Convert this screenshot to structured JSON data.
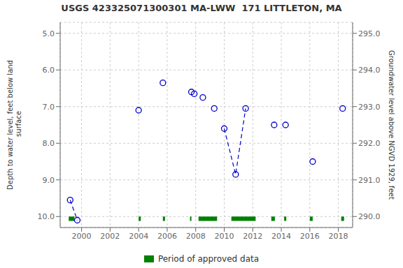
{
  "chart_data": {
    "type": "scatter",
    "title": "USGS 423325071300301 MA-LWW  171 LITTLETON, MA",
    "y_label": "Depth to water level, feet below land\n surface",
    "y2_label": "Groundwater level above NGVD 1929, feet",
    "xlim": [
      1998.5,
      2019.0
    ],
    "xticks": [
      2000,
      2002,
      2004,
      2006,
      2008,
      2010,
      2012,
      2014,
      2016,
      2018
    ],
    "ylim": [
      10.3,
      4.7
    ],
    "yticks": [
      {
        "value": 5.0,
        "label": "5.0"
      },
      {
        "value": 6.0,
        "label": "6.0"
      },
      {
        "value": 7.0,
        "label": "7.0"
      },
      {
        "value": 8.0,
        "label": "8.0"
      },
      {
        "value": 9.0,
        "label": "9.0"
      },
      {
        "value": 10.0,
        "label": "10.0"
      }
    ],
    "y2lim": [
      289.7,
      295.3
    ],
    "y2ticks": [
      {
        "value": 295.0,
        "label": "295.0"
      },
      {
        "value": 294.0,
        "label": "294.0"
      },
      {
        "value": 293.0,
        "label": "293.0"
      },
      {
        "value": 292.0,
        "label": "292.0"
      },
      {
        "value": 291.0,
        "label": "291.0"
      },
      {
        "value": 290.0,
        "label": "290.0"
      }
    ],
    "grid": true,
    "legend": "bottom",
    "series": [
      {
        "type": "line",
        "line_style": "dashed",
        "color": "#0000cc",
        "x": [
          1999.2,
          1999.7
        ],
        "values": [
          9.55,
          10.1
        ]
      },
      {
        "type": "line",
        "line_style": "dashed",
        "color": "#0000cc",
        "x": [
          2010.0,
          2010.8,
          2011.5
        ],
        "values": [
          7.6,
          8.85,
          7.05
        ]
      },
      {
        "type": "scatter",
        "marker": "circle",
        "color": "#0000cc",
        "x": [
          1999.2,
          1999.7,
          2004.0,
          2005.7,
          2007.7,
          2007.9,
          2008.5,
          2009.3,
          2010.0,
          2010.8,
          2011.5,
          2013.5,
          2014.3,
          2016.2,
          2018.3
        ],
        "values": [
          9.55,
          10.1,
          7.1,
          6.35,
          6.6,
          6.65,
          6.75,
          7.05,
          7.6,
          8.85,
          7.05,
          7.5,
          7.5,
          8.5,
          7.05
        ]
      },
      {
        "name": "Period of approved data",
        "type": "bar",
        "color": "#008000",
        "x_ranges": [
          [
            1999.1,
            1999.5
          ],
          [
            2004.0,
            2004.15
          ],
          [
            2005.7,
            2005.85
          ],
          [
            2007.6,
            2007.7
          ],
          [
            2008.2,
            2009.5
          ],
          [
            2010.5,
            2012.2
          ],
          [
            2013.3,
            2013.55
          ],
          [
            2014.2,
            2014.35
          ],
          [
            2016.0,
            2016.2
          ],
          [
            2018.2,
            2018.4
          ]
        ],
        "y_range": [
          10.0,
          10.12
        ]
      }
    ]
  }
}
